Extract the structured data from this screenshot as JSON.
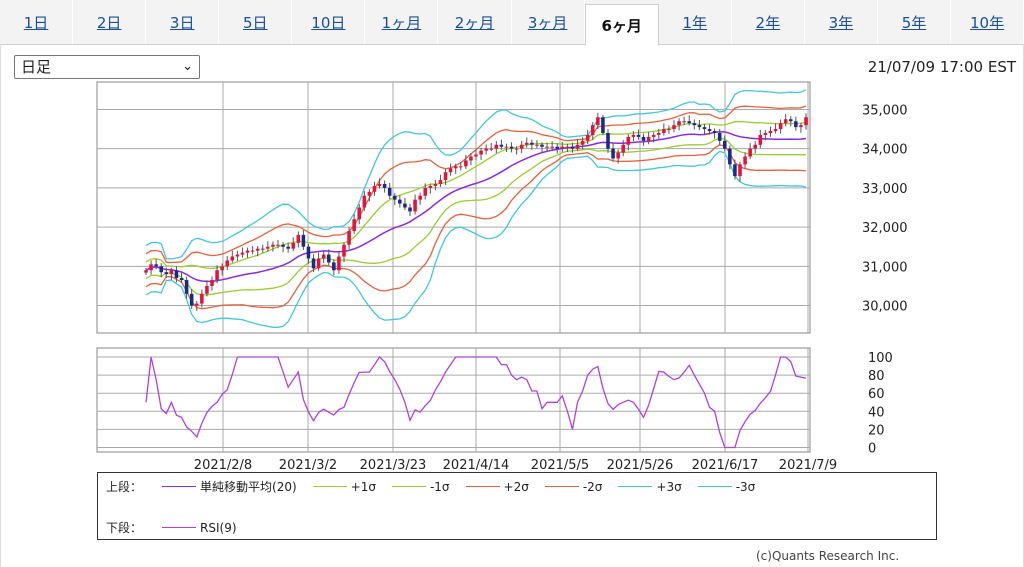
{
  "tabs": [
    {
      "label": "1日",
      "active": false
    },
    {
      "label": "2日",
      "active": false
    },
    {
      "label": "3日",
      "active": false
    },
    {
      "label": "5日",
      "active": false
    },
    {
      "label": "10日",
      "active": false
    },
    {
      "label": "1ヶ月",
      "active": false
    },
    {
      "label": "2ヶ月",
      "active": false
    },
    {
      "label": "3ヶ月",
      "active": false
    },
    {
      "label": "6ヶ月",
      "active": true
    },
    {
      "label": "1年",
      "active": false
    },
    {
      "label": "2年",
      "active": false
    },
    {
      "label": "3年",
      "active": false
    },
    {
      "label": "5年",
      "active": false
    },
    {
      "label": "10年",
      "active": false
    }
  ],
  "period_select": {
    "value": "日足"
  },
  "timestamp": "21/07/09 17:00 EST",
  "copyright": "(c)Quants Research Inc.",
  "legend": {
    "upper_label": "上段：",
    "lower_label": "下段：",
    "upper_items": [
      {
        "name": "単純移動平均(20)",
        "color": "#8a2be2"
      },
      {
        "name": "+1σ",
        "color": "#9acd32"
      },
      {
        "name": "-1σ",
        "color": "#9acd32"
      },
      {
        "name": "+2σ",
        "color": "#e8603c"
      },
      {
        "name": "-2σ",
        "color": "#e8603c"
      },
      {
        "name": "+3σ",
        "color": "#40c8d8"
      },
      {
        "name": "-3σ",
        "color": "#40c8d8"
      }
    ],
    "lower_items": [
      {
        "name": "RSI(9)",
        "color": "#b040e0"
      }
    ]
  },
  "chart_data": [
    {
      "type": "candlestick",
      "title": "",
      "y_ticks": [
        "35,000",
        "34,000",
        "33,000",
        "32,000",
        "31,000",
        "30,000"
      ],
      "y_tick_values": [
        35000,
        34000,
        33000,
        32000,
        31000,
        30000
      ],
      "ylim": [
        29300,
        35700
      ],
      "x_ticks": [
        "2021/2/8",
        "2021/3/2",
        "2021/3/23",
        "2021/4/14",
        "2021/5/5",
        "2021/5/26",
        "2021/6/17",
        "2021/7/9"
      ],
      "grid": true,
      "up_color": "#e8103c",
      "down_color": "#1a2a8a",
      "close": [
        30900,
        31050,
        31000,
        30850,
        30800,
        30900,
        30700,
        30650,
        30300,
        30000,
        30050,
        30300,
        30500,
        30650,
        30900,
        31000,
        31150,
        31250,
        31300,
        31350,
        31400,
        31400,
        31450,
        31450,
        31500,
        31550,
        31550,
        31500,
        31450,
        31600,
        31800,
        31500,
        31200,
        30950,
        31200,
        31300,
        31100,
        30900,
        31250,
        31550,
        31900,
        32200,
        32500,
        32800,
        32900,
        33050,
        33100,
        33000,
        32800,
        32700,
        32600,
        32500,
        32400,
        32700,
        32800,
        33000,
        33050,
        33100,
        33200,
        33400,
        33500,
        33550,
        33550,
        33700,
        33800,
        33850,
        33950,
        34000,
        34000,
        34100,
        34050,
        34050,
        34000,
        34000,
        34100,
        34150,
        34100,
        34100,
        34050,
        34050,
        34050,
        34000,
        34050,
        34050,
        34000,
        34100,
        34200,
        34350,
        34600,
        34800,
        34400,
        34000,
        33750,
        33900,
        34100,
        34300,
        34350,
        34300,
        34200,
        34300,
        34350,
        34400,
        34500,
        34500,
        34600,
        34700,
        34700,
        34650,
        34600,
        34550,
        34500,
        34450,
        34400,
        34200,
        34000,
        33600,
        33300,
        33600,
        33800,
        34000,
        34100,
        34350,
        34400,
        34450,
        34500,
        34650,
        34750,
        34700,
        34550,
        34600,
        34800
      ]
    },
    {
      "type": "line",
      "series": [
        {
          "name": "RSI(9)",
          "color": "#b040e0"
        }
      ],
      "y_ticks": [
        "100",
        "80",
        "60",
        "40",
        "20",
        "0"
      ],
      "y_tick_values": [
        100,
        80,
        60,
        40,
        20,
        0
      ],
      "ylim": [
        -5,
        110
      ],
      "grid": true
    }
  ]
}
